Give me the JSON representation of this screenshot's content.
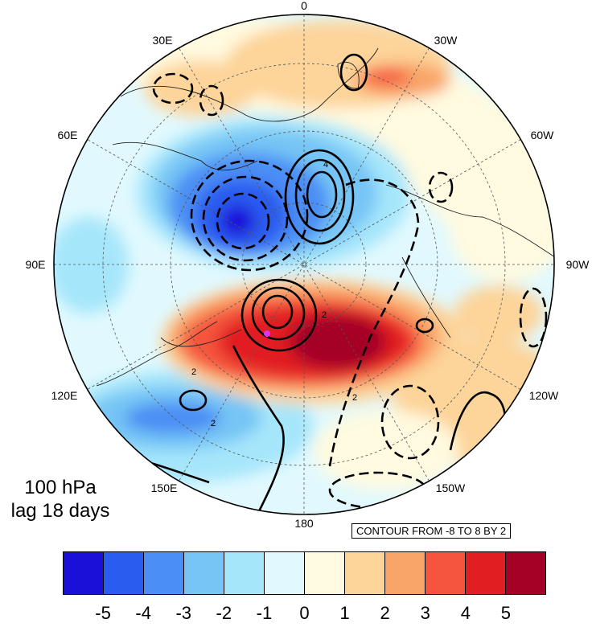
{
  "map": {
    "projection": "north polar stereographic",
    "longitude_labels": [
      "0",
      "30W",
      "60W",
      "90W",
      "120W",
      "150W",
      "180",
      "150E",
      "120E",
      "90E",
      "60E",
      "30E"
    ],
    "contour_labels": [
      "4",
      "2",
      "2",
      "2",
      "2"
    ]
  },
  "panel": {
    "level": "100 hPa",
    "lag": "lag 18 days"
  },
  "contour_note": "CONTOUR FROM -8 TO 8 BY 2",
  "colorbar": {
    "colors": [
      "#1a10d8",
      "#2b5cf0",
      "#4b8ef5",
      "#76c5f5",
      "#a6e6fb",
      "#e1f9fe",
      "#fffae0",
      "#fdd49a",
      "#f9a468",
      "#f5553e",
      "#e11e22",
      "#a50026"
    ],
    "ticks": [
      "-5",
      "-4",
      "-3",
      "-2",
      "-1",
      "0",
      "1",
      "2",
      "3",
      "4",
      "5"
    ]
  }
}
